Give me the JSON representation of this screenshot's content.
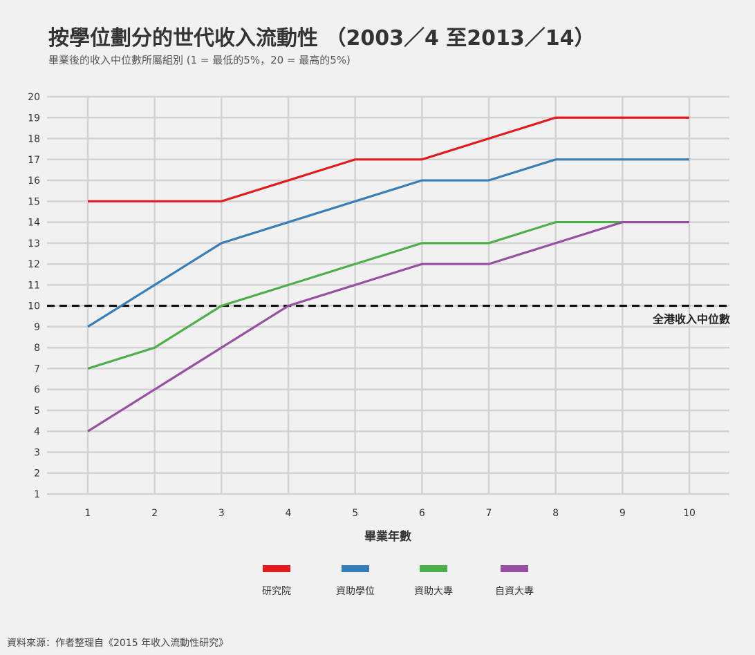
{
  "title": "按學位劃分的世代收入流動性 （2003／4 至2013／14）",
  "subtitle": "畢業後的收入中位數所屬組別 (1 = 最低的5%，20 = 最高的5%)",
  "source": "資料來源：作者整理自《2015 年收入流動性研究》",
  "chart_data": {
    "type": "line",
    "title": "按學位劃分的世代收入流動性 （2003／4 至2013／14）",
    "subtitle": "畢業後的收入中位數所屬組別 (1 = 最低的5%，20 = 最高的5%)",
    "xlabel": "畢業年數",
    "ylabel": "",
    "x": [
      1,
      2,
      3,
      4,
      5,
      6,
      7,
      8,
      9,
      10
    ],
    "xlim": [
      0.4,
      11.6
    ],
    "ylim": [
      1,
      20
    ],
    "yticks": [
      1,
      2,
      3,
      4,
      5,
      6,
      7,
      8,
      9,
      10,
      11,
      12,
      13,
      14,
      15,
      16,
      17,
      18,
      19,
      20
    ],
    "grid": true,
    "legend_position": "bottom",
    "series": [
      {
        "name": "研究院",
        "color": "#e31a1c",
        "values": [
          15,
          15,
          15,
          16,
          17,
          17,
          18,
          19,
          19,
          19
        ]
      },
      {
        "name": "資助學位",
        "color": "#377eb8",
        "values": [
          9,
          11,
          13,
          14,
          15,
          16,
          16,
          17,
          17,
          17
        ]
      },
      {
        "name": "資助大專",
        "color": "#4daf4a",
        "values": [
          7,
          8,
          10,
          11,
          12,
          13,
          13,
          14,
          14,
          14
        ]
      },
      {
        "name": "自資大專",
        "color": "#984ea3",
        "values": [
          4,
          6,
          8,
          10,
          11,
          12,
          12,
          13,
          14,
          14
        ]
      }
    ],
    "reference_line": {
      "y": 10,
      "label": "全港收入中位數",
      "style": "dashed",
      "color": "#000000"
    }
  }
}
